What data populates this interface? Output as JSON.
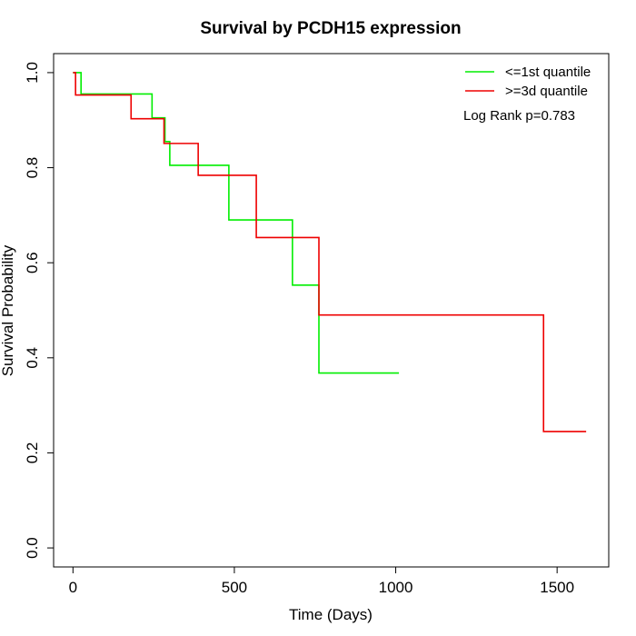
{
  "chart_data": {
    "type": "line",
    "title": "Survival by PCDH15 expression",
    "xlabel": "Time (Days)",
    "ylabel": "Survival Probability",
    "xlim": [
      -60,
      1660
    ],
    "ylim": [
      -0.04,
      1.04
    ],
    "x_ticks": [
      0,
      500,
      1000,
      1500
    ],
    "x_tick_labels": [
      "0",
      "500",
      "1000",
      "1500"
    ],
    "y_ticks": [
      0.0,
      0.2,
      0.4,
      0.6,
      0.8,
      1.0
    ],
    "y_tick_labels": [
      "0.0",
      "0.2",
      "0.4",
      "0.6",
      "0.8",
      "1.0"
    ],
    "legend_position": "top-right",
    "annotation": "Log Rank p=0.783",
    "grid": false,
    "series": [
      {
        "name": "<=1st quantile",
        "color": "#00ee00",
        "step_x": [
          0,
          25,
          245,
          285,
          300,
          483,
          680,
          762,
          1010
        ],
        "step_y": [
          1.0,
          0.955,
          0.905,
          0.855,
          0.805,
          0.69,
          0.553,
          0.368,
          0.368
        ]
      },
      {
        "name": ">=3d quantile",
        "color": "#ee0000",
        "step_x": [
          0,
          8,
          180,
          282,
          388,
          568,
          762,
          1458,
          1590
        ],
        "step_y": [
          1.0,
          0.953,
          0.903,
          0.851,
          0.784,
          0.653,
          0.49,
          0.245,
          0.245
        ]
      }
    ]
  }
}
